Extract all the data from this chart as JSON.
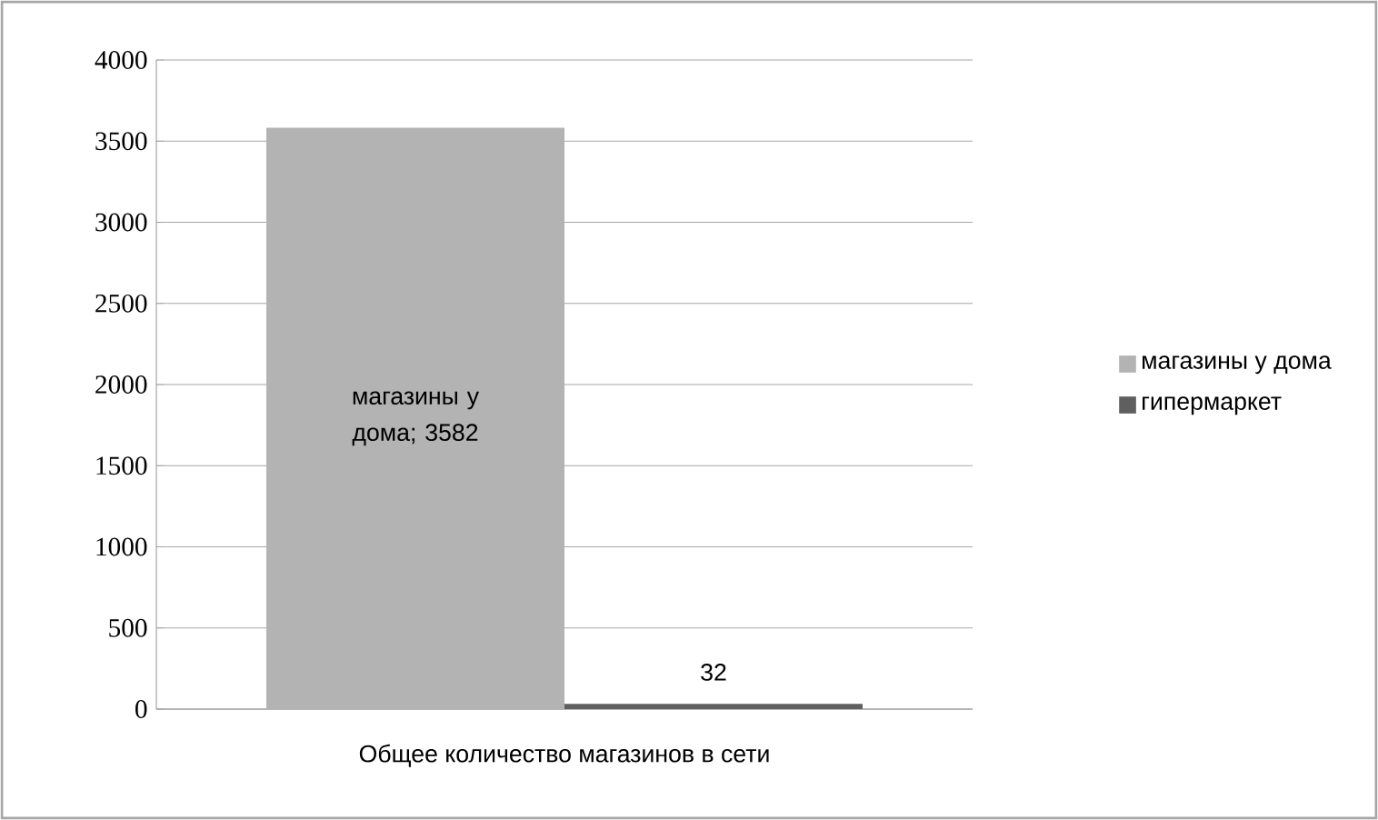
{
  "chart_data": {
    "type": "bar",
    "categories": [
      "Общее количество магазинов в сети"
    ],
    "series": [
      {
        "name": "магазины у дома",
        "color": "#b3b3b3",
        "values": [
          3582
        ],
        "value_labels": [
          "магазины у дома; 3582"
        ]
      },
      {
        "name": "гипермаркет",
        "color": "#5f5f5f",
        "values": [
          32
        ],
        "value_labels": [
          "32"
        ]
      }
    ],
    "ylim": [
      0,
      4000
    ],
    "yticks": [
      0,
      500,
      1000,
      1500,
      2000,
      2500,
      3000,
      3500,
      4000
    ],
    "grid": "y",
    "legend": "right"
  }
}
